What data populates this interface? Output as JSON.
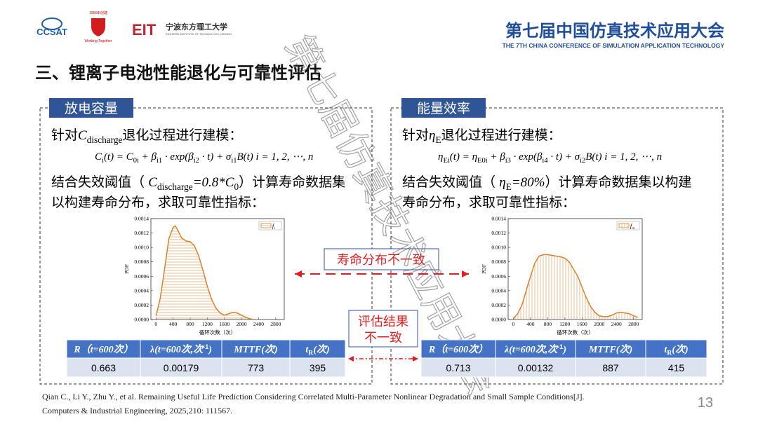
{
  "header": {
    "logo1": "CCSAT",
    "logo2_top": "1956年创建",
    "logo2_bottom": "Working Together",
    "logo3": "EIT",
    "logo3_name": "宁波东方理工大学",
    "logo3_sub": "EASTERN INSTITUTE OF TECHNOLOGY, NINGBO",
    "conference": "第七届中国仿真技术应用大会",
    "conference_en": "THE 7TH CHINA CONFERENCE OF SIMULATION APPLICATION TECHNOLOGY"
  },
  "section_title": "三、锂离子电池性能退化与可靠性评估",
  "panels": [
    {
      "label": "放电容量",
      "intro": [
        {
          "text": "针对"
        },
        {
          "math": "C"
        },
        {
          "sub": "discharge"
        },
        {
          "text": "退化过程进行建模："
        }
      ],
      "formula": [
        {
          "math": "C"
        },
        {
          "sub": "i"
        },
        {
          "math": "(t) = C"
        },
        {
          "sub": "0i"
        },
        {
          "math": " + β"
        },
        {
          "sub": "i1"
        },
        {
          "math": " · exp(β"
        },
        {
          "sub": "i2"
        },
        {
          "math": " · t) + σ"
        },
        {
          "sub": "i1"
        },
        {
          "math": "B(t)      i = 1, 2, ⋯, n"
        }
      ],
      "threshold": [
        [
          {
            "text": "结合失效阈值（ "
          },
          {
            "math": "C"
          },
          {
            "sub": "discharge"
          },
          {
            "math": "=0.8*C"
          },
          {
            "sub": "0"
          },
          {
            "text": "）计算寿命数据集"
          }
        ],
        [
          {
            "text": "以构建寿命分布，求取可靠性指标："
          }
        ]
      ],
      "chart": {
        "type": "area",
        "x_label": "循环次数（次）",
        "y_label": "PDF",
        "hatch": "horizontal",
        "color": "#d9822b",
        "series": [
          {
            "name": "f",
            "sub": "t",
            "x": [
              0,
              100,
              200,
              300,
              400,
              450,
              500,
              600,
              700,
              800,
              900,
              1000,
              1100,
              1200,
              1300,
              1400,
              1500,
              1600,
              1700,
              1800,
              1900,
              2000,
              2100,
              2200,
              2300
            ],
            "values": [
              5e-05,
              0.0003,
              0.0007,
              0.00112,
              0.00128,
              0.0013,
              0.00125,
              0.00113,
              0.00109,
              0.00108,
              0.00102,
              0.00088,
              0.00068,
              0.00046,
              0.00028,
              0.00016,
              9e-05,
              6e-05,
              8e-05,
              0.0001,
              9e-05,
              6e-05,
              3e-05,
              1e-05,
              0
            ]
          }
        ],
        "xlim": [
          -120,
          3000
        ],
        "xticks": [
          0,
          400,
          800,
          1200,
          1600,
          2000,
          2400,
          2800
        ],
        "ylim": [
          0,
          0.0014
        ],
        "yticks": [
          {
            "value": 0,
            "label": "0.0000"
          },
          {
            "value": 0.0002,
            "label": "0.0002"
          },
          {
            "value": 0.0004,
            "label": "0.0004"
          },
          {
            "value": 0.0006,
            "label": "0.0006"
          },
          {
            "value": 0.0008,
            "label": "0.0008"
          },
          {
            "value": 0.001,
            "label": "0.0010"
          },
          {
            "value": 0.0012,
            "label": "0.0012"
          },
          {
            "value": 0.0014,
            "label": "0.0014"
          }
        ]
      },
      "table": {
        "header": [
          [
            {
              "math": "R（t=600次）"
            }
          ],
          [
            {
              "math": "λ(t=600次,次"
            },
            {
              "sup": "-1"
            },
            {
              "math": ")"
            }
          ],
          [
            {
              "math": "MTTF(次)"
            }
          ],
          [
            {
              "math": "t"
            },
            {
              "sub": "R"
            },
            {
              "math": "(次)"
            }
          ]
        ],
        "row": [
          0.663,
          0.00179,
          773,
          395
        ]
      }
    },
    {
      "label": "能量效率",
      "intro": [
        {
          "text": "针对"
        },
        {
          "math": "η"
        },
        {
          "sub": "E"
        },
        {
          "text": "退化过程进行建模："
        }
      ],
      "formula": [
        {
          "math": "η"
        },
        {
          "sub": "Ei"
        },
        {
          "math": "(t) = η"
        },
        {
          "sub": "E0i"
        },
        {
          "math": " + β"
        },
        {
          "sub": "i3"
        },
        {
          "math": " · exp(β"
        },
        {
          "sub": "i4"
        },
        {
          "math": " · t) + σ"
        },
        {
          "sub": "i2"
        },
        {
          "math": "B(t)      i = 1, 2, ⋯, n"
        }
      ],
      "threshold": [
        [
          {
            "text": "结合失效阈值（ "
          },
          {
            "math": "η"
          },
          {
            "sub": "E"
          },
          {
            "math": "=80%"
          },
          {
            "text": "）计算寿命数据集以构建"
          }
        ],
        [
          {
            "text": "寿命分布，求取可靠性指标："
          }
        ]
      ],
      "chart": {
        "type": "area",
        "x_label": "循环次数（次）",
        "y_label": "PDF",
        "hatch": "vertical",
        "color": "#d9822b",
        "series": [
          {
            "name": "f",
            "sub": "m",
            "x": [
              0,
              100,
              200,
              300,
              400,
              500,
              600,
              700,
              800,
              900,
              1000,
              1100,
              1200,
              1300,
              1400,
              1500,
              1600,
              1700,
              1800,
              1900,
              2000,
              2100,
              2200,
              2300,
              2400,
              2500,
              2600,
              2700,
              2800,
              2900
            ],
            "values": [
              1e-05,
              8e-05,
              0.0002,
              0.0004,
              0.0006,
              0.00078,
              0.00088,
              0.0009,
              0.0009,
              0.00089,
              0.00088,
              0.00087,
              0.00085,
              0.0008,
              0.0007,
              0.0006,
              0.00045,
              0.0003,
              0.00018,
              0.0001,
              5e-05,
              4e-05,
              4e-05,
              6e-05,
              9e-05,
              0.0001,
              9e-05,
              8e-05,
              5e-05,
              3e-05
            ]
          }
        ],
        "xlim": [
          -120,
          3000
        ],
        "xticks": [
          0,
          400,
          800,
          1200,
          1600,
          2000,
          2400,
          2800
        ],
        "ylim": [
          0,
          0.0014
        ],
        "yticks": [
          {
            "value": 0,
            "label": "0.0000"
          },
          {
            "value": 0.0002,
            "label": "0.0002"
          },
          {
            "value": 0.0004,
            "label": "0.0004"
          },
          {
            "value": 0.0006,
            "label": "0.0006"
          },
          {
            "value": 0.0008,
            "label": "0.0008"
          },
          {
            "value": 0.001,
            "label": "0.0010"
          },
          {
            "value": 0.0012,
            "label": "0.0012"
          },
          {
            "value": 0.0014,
            "label": "0.0014"
          }
        ]
      },
      "table": {
        "header": [
          [
            {
              "math": "R（t=600次）"
            }
          ],
          [
            {
              "math": "λ(t=600次,次"
            },
            {
              "sup": "-1"
            },
            {
              "math": ")"
            }
          ],
          [
            {
              "math": "MTTF(次)"
            }
          ],
          [
            {
              "math": "t"
            },
            {
              "sub": "R"
            },
            {
              "math": "(次)"
            }
          ]
        ],
        "row": [
          0.713,
          0.00132,
          887,
          415
        ]
      }
    }
  ],
  "callouts": [
    "寿命分布不一致",
    "评估结果",
    "不一致"
  ],
  "reference": [
    "Qian C., Li Y., Zhu Y., et al. Remaining Useful Life Prediction Considering Correlated Multi-Parameter Nonlinear Degradation and Small Sample Conditions[J].",
    "Computers & Industrial Engineering, 2025,210: 111567."
  ],
  "page_number": "13",
  "watermark": "第七届仿真技术应用大会"
}
